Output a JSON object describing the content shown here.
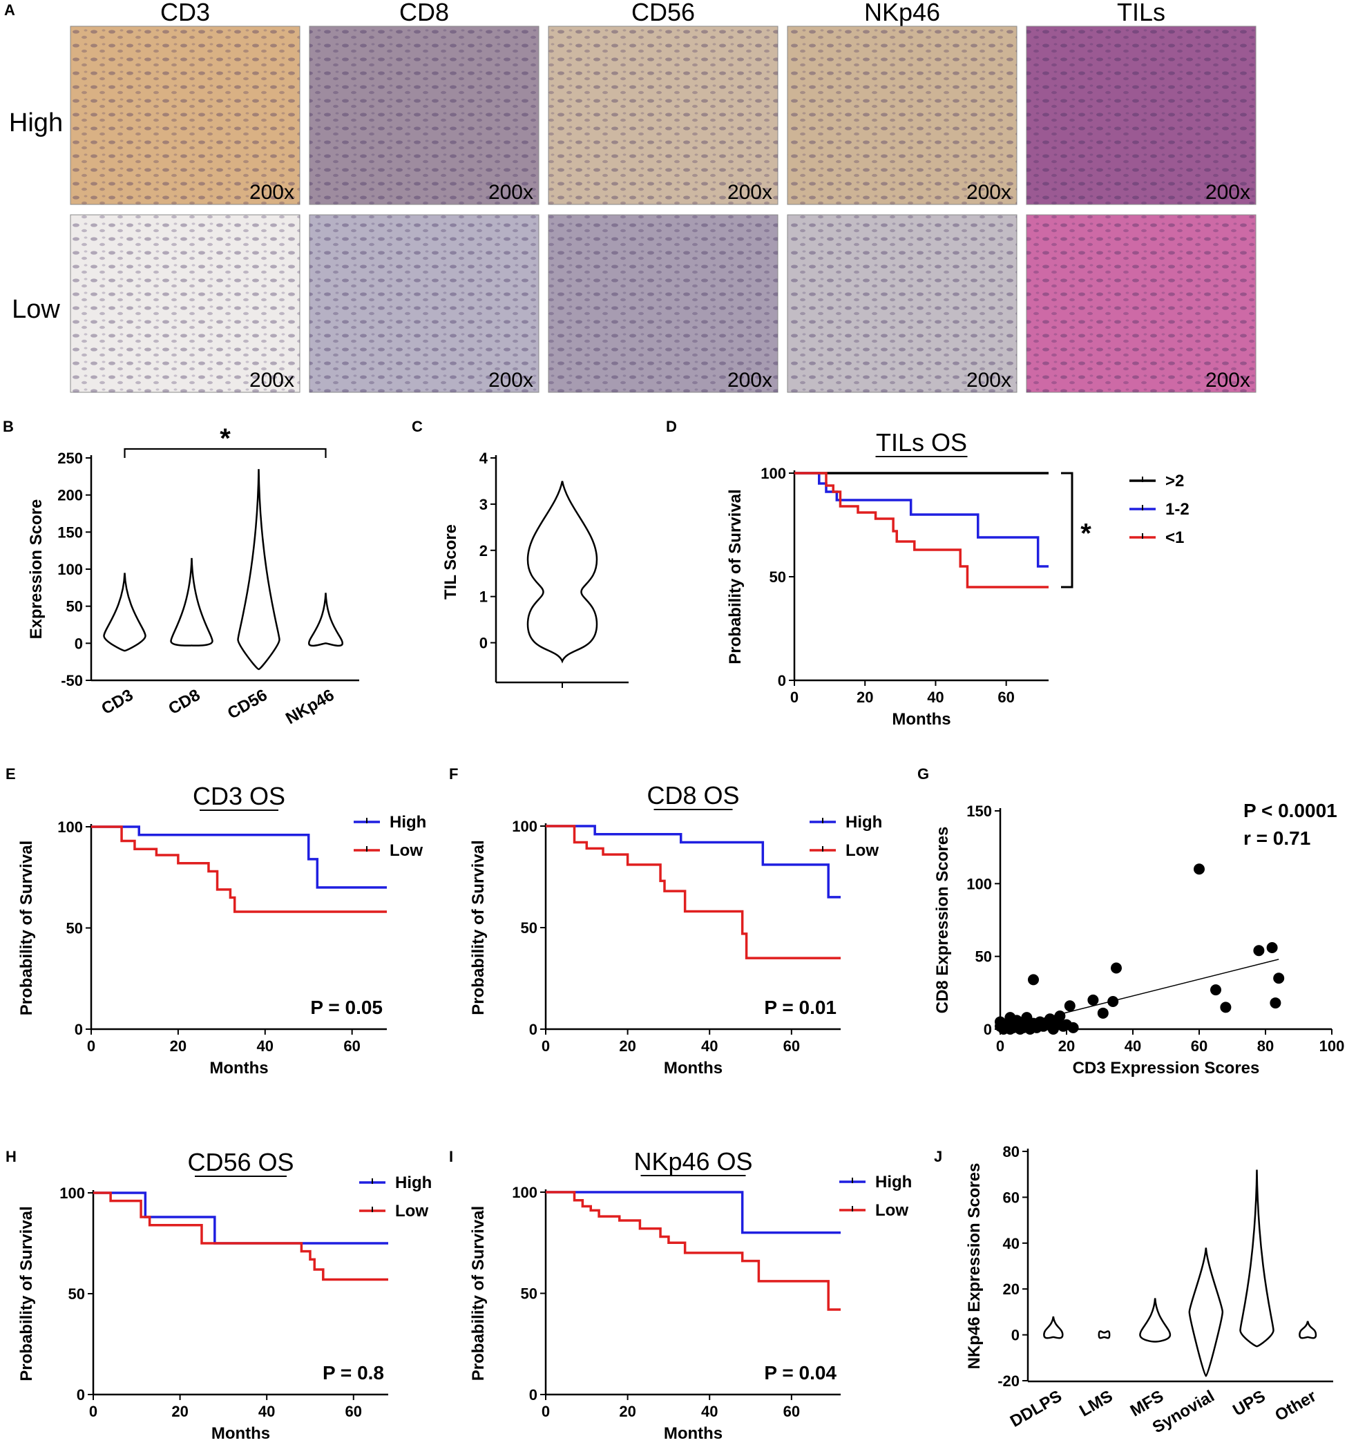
{
  "panel_A": {
    "label": "A",
    "columns": [
      "CD3",
      "CD8",
      "CD56",
      "NKp46",
      "TILs"
    ],
    "rows": [
      "High",
      "Low"
    ],
    "magnification": "200x",
    "tile_colors": {
      "high": [
        "#d9b184",
        "#9e8c9f",
        "#cdb8a2",
        "#cdb496",
        "#9b5a93"
      ],
      "low": [
        "#eeebea",
        "#b6b1c4",
        "#a79cb1",
        "#c2bcc4",
        "#cd6aa6"
      ]
    }
  },
  "chart_data": [
    {
      "id": "B",
      "label": "B",
      "type": "violin",
      "categories": [
        "CD3",
        "CD8",
        "CD56",
        "NKp46"
      ],
      "ylabel": "Expression Score",
      "ylim": [
        -50,
        250
      ],
      "yticks": [
        -50,
        0,
        50,
        100,
        150,
        200,
        250
      ],
      "significance": {
        "from": "CD3",
        "to": "NKp46",
        "mark": "*"
      },
      "violins": [
        {
          "category": "CD3",
          "min": -10,
          "max": 95,
          "median": 10
        },
        {
          "category": "CD8",
          "min": -3,
          "max": 115,
          "median": 3
        },
        {
          "category": "CD56",
          "min": -35,
          "max": 235,
          "median": 5
        },
        {
          "category": "NKp46",
          "min": 0,
          "max": 68,
          "median": 0
        }
      ]
    },
    {
      "id": "C",
      "label": "C",
      "type": "violin",
      "categories": [
        ""
      ],
      "ylabel": "TIL Score",
      "ylim": [
        -0.5,
        4
      ],
      "yticks": [
        0,
        1,
        2,
        3,
        4
      ],
      "violins": [
        {
          "category": "",
          "min": -0.4,
          "max": 3.5,
          "modes": [
            0.4,
            1.8
          ]
        }
      ]
    },
    {
      "id": "D",
      "label": "D",
      "type": "line",
      "title": "TILs OS",
      "xlabel": "Months",
      "ylabel": "Probability of Survival",
      "xlim": [
        0,
        72
      ],
      "ylim": [
        0,
        100
      ],
      "xticks": [
        0,
        20,
        40,
        60
      ],
      "yticks": [
        0,
        50,
        100
      ],
      "significance": {
        "mark": "*",
        "from_y": 100,
        "to_y": 45
      },
      "series": [
        {
          "name": ">2",
          "color": "#000000",
          "x": [
            0,
            72
          ],
          "y": [
            100,
            100
          ]
        },
        {
          "name": "1-2",
          "color": "#1f1fe0",
          "x": [
            0,
            7,
            9,
            12,
            33,
            52,
            69,
            72
          ],
          "y": [
            100,
            95,
            91,
            87,
            80,
            69,
            55,
            55
          ]
        },
        {
          "name": "<1",
          "color": "#e01f1f",
          "x": [
            0,
            9,
            11,
            13,
            18,
            23,
            28,
            29,
            34,
            47,
            49,
            72
          ],
          "y": [
            100,
            94,
            91,
            84,
            81,
            78,
            72,
            67,
            63,
            55,
            45,
            45
          ]
        }
      ]
    },
    {
      "id": "E",
      "label": "E",
      "type": "line",
      "title": "CD3 OS",
      "xlabel": "Months",
      "ylabel": "Probability of Survival",
      "xlim": [
        0,
        68
      ],
      "ylim": [
        0,
        100
      ],
      "xticks": [
        0,
        20,
        40,
        60
      ],
      "yticks": [
        0,
        50,
        100
      ],
      "pvalue": "P = 0.05",
      "series": [
        {
          "name": "High",
          "color": "#1f1fe0",
          "x": [
            0,
            11,
            50,
            52,
            68
          ],
          "y": [
            100,
            96,
            84,
            70,
            70
          ]
        },
        {
          "name": "Low",
          "color": "#e01f1f",
          "x": [
            0,
            7,
            10,
            15,
            20,
            27,
            29,
            32,
            33,
            68
          ],
          "y": [
            100,
            93,
            89,
            86,
            82,
            78,
            69,
            65,
            58,
            58
          ]
        }
      ]
    },
    {
      "id": "F",
      "label": "F",
      "type": "line",
      "title": "CD8 OS",
      "xlabel": "Months",
      "ylabel": "Probability of Survival",
      "xlim": [
        0,
        72
      ],
      "ylim": [
        0,
        100
      ],
      "xticks": [
        0,
        20,
        40,
        60
      ],
      "yticks": [
        0,
        50,
        100
      ],
      "pvalue": "P = 0.01",
      "series": [
        {
          "name": "High",
          "color": "#1f1fe0",
          "x": [
            0,
            12,
            33,
            53,
            69,
            72
          ],
          "y": [
            100,
            96,
            92,
            81,
            65,
            65
          ]
        },
        {
          "name": "Low",
          "color": "#e01f1f",
          "x": [
            0,
            7,
            10,
            14,
            20,
            28,
            29,
            34,
            48,
            49,
            72
          ],
          "y": [
            100,
            92,
            89,
            86,
            81,
            73,
            68,
            58,
            47,
            35,
            35
          ]
        }
      ]
    },
    {
      "id": "G",
      "label": "G",
      "type": "scatter",
      "xlabel": "CD3 Expression Scores",
      "ylabel": "CD8 Expression Scores",
      "xlim": [
        0,
        100
      ],
      "ylim": [
        0,
        150
      ],
      "xticks": [
        0,
        20,
        40,
        60,
        80,
        100
      ],
      "yticks": [
        0,
        50,
        100,
        150
      ],
      "annotations": [
        "P < 0.0001",
        "r = 0.71"
      ],
      "trendline": {
        "x": [
          0,
          84
        ],
        "y": [
          0,
          48
        ]
      },
      "points": [
        [
          0,
          2
        ],
        [
          0,
          5
        ],
        [
          1,
          0
        ],
        [
          2,
          1
        ],
        [
          2,
          3
        ],
        [
          3,
          8
        ],
        [
          3,
          0
        ],
        [
          4,
          4
        ],
        [
          4,
          1
        ],
        [
          5,
          2
        ],
        [
          5,
          6
        ],
        [
          6,
          0
        ],
        [
          6,
          3
        ],
        [
          7,
          1
        ],
        [
          7,
          5
        ],
        [
          8,
          2
        ],
        [
          8,
          8
        ],
        [
          9,
          0
        ],
        [
          10,
          4
        ],
        [
          10,
          34
        ],
        [
          11,
          1
        ],
        [
          12,
          5
        ],
        [
          13,
          2
        ],
        [
          14,
          3
        ],
        [
          15,
          7
        ],
        [
          16,
          0
        ],
        [
          17,
          5
        ],
        [
          18,
          9
        ],
        [
          19,
          2
        ],
        [
          20,
          3
        ],
        [
          21,
          16
        ],
        [
          22,
          1
        ],
        [
          28,
          20
        ],
        [
          31,
          11
        ],
        [
          34,
          19
        ],
        [
          35,
          42
        ],
        [
          60,
          110
        ],
        [
          65,
          27
        ],
        [
          68,
          15
        ],
        [
          78,
          54
        ],
        [
          82,
          56
        ],
        [
          83,
          18
        ],
        [
          84,
          35
        ]
      ]
    },
    {
      "id": "H",
      "label": "H",
      "type": "line",
      "title": "CD56 OS",
      "xlabel": "Months",
      "ylabel": "Probability of Survival",
      "xlim": [
        0,
        68
      ],
      "ylim": [
        0,
        100
      ],
      "xticks": [
        0,
        20,
        40,
        60
      ],
      "yticks": [
        0,
        50,
        100
      ],
      "pvalue": "P = 0.8",
      "series": [
        {
          "name": "High",
          "color": "#1f1fe0",
          "x": [
            0,
            12,
            28,
            68
          ],
          "y": [
            100,
            88,
            75,
            75
          ]
        },
        {
          "name": "Low",
          "color": "#e01f1f",
          "x": [
            0,
            4,
            11,
            13,
            25,
            48,
            50,
            51,
            53,
            68
          ],
          "y": [
            100,
            96,
            88,
            84,
            75,
            71,
            67,
            62,
            57,
            57
          ]
        }
      ]
    },
    {
      "id": "I",
      "label": "I",
      "type": "line",
      "title": "NKp46 OS",
      "xlabel": "Months",
      "ylabel": "Probability of Survival",
      "xlim": [
        0,
        72
      ],
      "ylim": [
        0,
        100
      ],
      "xticks": [
        0,
        20,
        40,
        60
      ],
      "yticks": [
        0,
        50,
        100
      ],
      "pvalue": "P = 0.04",
      "series": [
        {
          "name": "High",
          "color": "#1f1fe0",
          "x": [
            0,
            48,
            72
          ],
          "y": [
            100,
            80,
            80
          ]
        },
        {
          "name": "Low",
          "color": "#e01f1f",
          "x": [
            0,
            7,
            9,
            11,
            13,
            18,
            23,
            28,
            30,
            34,
            48,
            52,
            69,
            72
          ],
          "y": [
            100,
            96,
            93,
            91,
            88,
            86,
            82,
            78,
            75,
            70,
            66,
            56,
            42,
            42
          ]
        }
      ]
    },
    {
      "id": "J",
      "label": "J",
      "type": "violin",
      "categories": [
        "DDLPS",
        "LMS",
        "MFS",
        "Synovial",
        "UPS",
        "Other"
      ],
      "ylabel": "NKp46 Expression Scores",
      "ylim": [
        -20,
        80
      ],
      "yticks": [
        -20,
        0,
        20,
        40,
        60,
        80
      ],
      "violins": [
        {
          "category": "DDLPS",
          "min": -1,
          "max": 8,
          "median": 0
        },
        {
          "category": "LMS",
          "min": -1,
          "max": 1,
          "median": 0
        },
        {
          "category": "MFS",
          "min": -3,
          "max": 16,
          "median": 0
        },
        {
          "category": "Synovial",
          "min": -18,
          "max": 38,
          "median": 10
        },
        {
          "category": "UPS",
          "min": -5,
          "max": 72,
          "median": 2
        },
        {
          "category": "Other",
          "min": -1,
          "max": 6,
          "median": 0
        }
      ]
    }
  ]
}
